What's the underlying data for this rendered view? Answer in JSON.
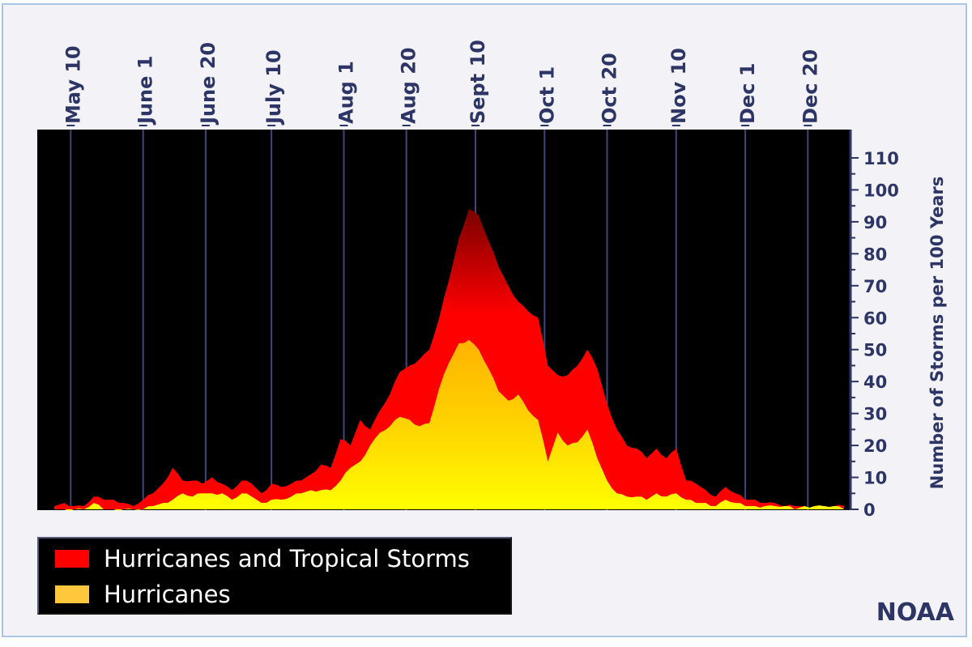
{
  "credit": "NOAA",
  "colors": {
    "background": "#f2f2f7",
    "plot_background": "#000000",
    "text": "#2d3566",
    "tropical_top": "#7a0000",
    "tropical": "#ff0000",
    "hurricane_top": "#ffb300",
    "hurricane": "#ffff00"
  },
  "legend": {
    "items": [
      {
        "label": "Hurricanes and Tropical Storms",
        "color": "#ff0000"
      },
      {
        "label": "Hurricanes",
        "color": "#ffc83c"
      }
    ]
  },
  "chart_data": {
    "type": "area",
    "title": "",
    "xlabel": "",
    "ylabel": "Number of Storms per 100 Years",
    "x_unit": "day of year",
    "xlim": [
      125,
      365
    ],
    "ylim": [
      0,
      110
    ],
    "yticks": [
      0,
      10,
      20,
      30,
      40,
      50,
      60,
      70,
      80,
      90,
      100,
      110
    ],
    "xticks": [
      {
        "label": "May 10",
        "x": 130
      },
      {
        "label": "June 1",
        "x": 152
      },
      {
        "label": "June 20",
        "x": 171
      },
      {
        "label": "July 10",
        "x": 191
      },
      {
        "label": "Aug 1",
        "x": 213
      },
      {
        "label": "Aug 20",
        "x": 232
      },
      {
        "label": "Sept 10",
        "x": 253
      },
      {
        "label": "Oct 1",
        "x": 274
      },
      {
        "label": "Oct 20",
        "x": 293
      },
      {
        "label": "Nov 10",
        "x": 314
      },
      {
        "label": "Dec 1",
        "x": 335
      },
      {
        "label": "Dec 20",
        "x": 354
      }
    ],
    "x": [
      125,
      128,
      131,
      134,
      137,
      140,
      143,
      146,
      149,
      152,
      155,
      158,
      161,
      164,
      167,
      170,
      173,
      176,
      179,
      182,
      185,
      188,
      191,
      194,
      197,
      200,
      203,
      206,
      209,
      212,
      215,
      218,
      221,
      224,
      227,
      230,
      233,
      236,
      239,
      242,
      245,
      248,
      251,
      254,
      257,
      260,
      263,
      266,
      269,
      272,
      275,
      278,
      281,
      284,
      287,
      290,
      293,
      296,
      299,
      302,
      305,
      308,
      311,
      314,
      317,
      320,
      323,
      326,
      329,
      332,
      335,
      338,
      341,
      344,
      347,
      350,
      353,
      356,
      359,
      362,
      365
    ],
    "series": [
      {
        "name": "Hurricanes and Tropical Storms",
        "values": [
          1,
          2,
          1,
          1,
          4,
          3,
          3,
          2,
          1,
          3,
          5,
          8,
          13,
          9,
          9,
          8,
          10,
          8,
          6,
          9,
          8,
          5,
          8,
          7,
          8,
          9,
          11,
          14,
          13,
          22,
          20,
          28,
          25,
          31,
          36,
          43,
          45,
          47,
          50,
          60,
          72,
          85,
          94,
          92,
          84,
          76,
          70,
          65,
          62,
          60,
          45,
          42,
          42,
          45,
          50,
          44,
          33,
          25,
          20,
          19,
          16,
          19,
          16,
          19,
          9,
          8,
          6,
          4,
          7,
          5,
          3,
          3,
          2,
          2,
          1,
          1,
          1,
          1,
          1,
          1,
          1
        ]
      },
      {
        "name": "Hurricanes",
        "values": [
          0,
          0,
          0,
          0,
          2,
          0,
          0,
          0,
          0,
          0,
          1,
          2,
          3,
          5,
          4,
          5,
          5,
          5,
          3,
          5,
          4,
          2,
          3,
          3,
          4,
          5,
          6,
          6,
          6,
          9,
          13,
          15,
          20,
          24,
          26,
          29,
          28,
          26,
          27,
          38,
          46,
          52,
          53,
          50,
          44,
          37,
          34,
          36,
          31,
          28,
          15,
          24,
          20,
          21,
          25,
          16,
          9,
          5,
          4,
          4,
          3,
          5,
          4,
          5,
          3,
          2,
          2,
          1,
          3,
          2,
          1,
          1,
          1,
          1,
          1,
          0,
          1,
          1,
          1,
          1,
          0
        ]
      }
    ],
    "grid": true,
    "legend_position": "bottom-left"
  }
}
